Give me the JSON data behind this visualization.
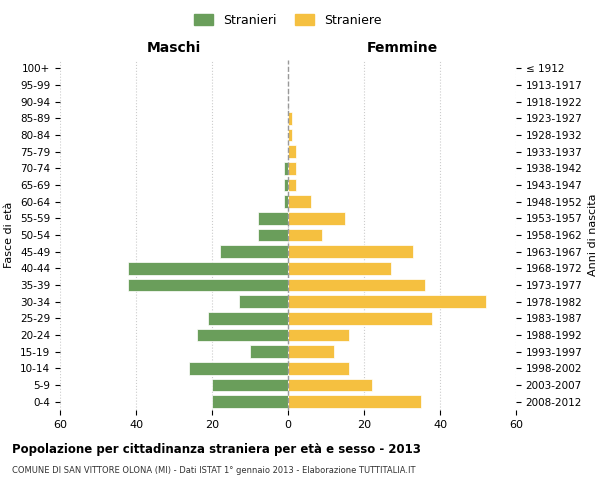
{
  "age_groups": [
    "100+",
    "95-99",
    "90-94",
    "85-89",
    "80-84",
    "75-79",
    "70-74",
    "65-69",
    "60-64",
    "55-59",
    "50-54",
    "45-49",
    "40-44",
    "35-39",
    "30-34",
    "25-29",
    "20-24",
    "15-19",
    "10-14",
    "5-9",
    "0-4"
  ],
  "birth_years": [
    "≤ 1912",
    "1913-1917",
    "1918-1922",
    "1923-1927",
    "1928-1932",
    "1933-1937",
    "1938-1942",
    "1943-1947",
    "1948-1952",
    "1953-1957",
    "1958-1962",
    "1963-1967",
    "1968-1972",
    "1973-1977",
    "1978-1982",
    "1983-1987",
    "1988-1992",
    "1993-1997",
    "1998-2002",
    "2003-2007",
    "2008-2012"
  ],
  "maschi": [
    0,
    0,
    0,
    0,
    0,
    0,
    1,
    1,
    1,
    8,
    8,
    18,
    42,
    42,
    13,
    21,
    24,
    10,
    26,
    20,
    20
  ],
  "femmine": [
    0,
    0,
    0,
    1,
    1,
    2,
    2,
    2,
    6,
    15,
    9,
    33,
    27,
    36,
    52,
    38,
    16,
    12,
    16,
    22,
    35
  ],
  "maschi_color": "#6a9e5b",
  "femmine_color": "#f5c040",
  "background_color": "#ffffff",
  "grid_color": "#cccccc",
  "title": "Popolazione per cittadinanza straniera per età e sesso - 2013",
  "subtitle": "COMUNE DI SAN VITTORE OLONA (MI) - Dati ISTAT 1° gennaio 2013 - Elaborazione TUTTITALIA.IT",
  "xlabel_left": "Maschi",
  "xlabel_right": "Femmine",
  "ylabel_left": "Fasce di età",
  "ylabel_right": "Anni di nascita",
  "legend_maschi": "Stranieri",
  "legend_femmine": "Straniere",
  "xlim": 60,
  "dashed_line_color": "#999999"
}
